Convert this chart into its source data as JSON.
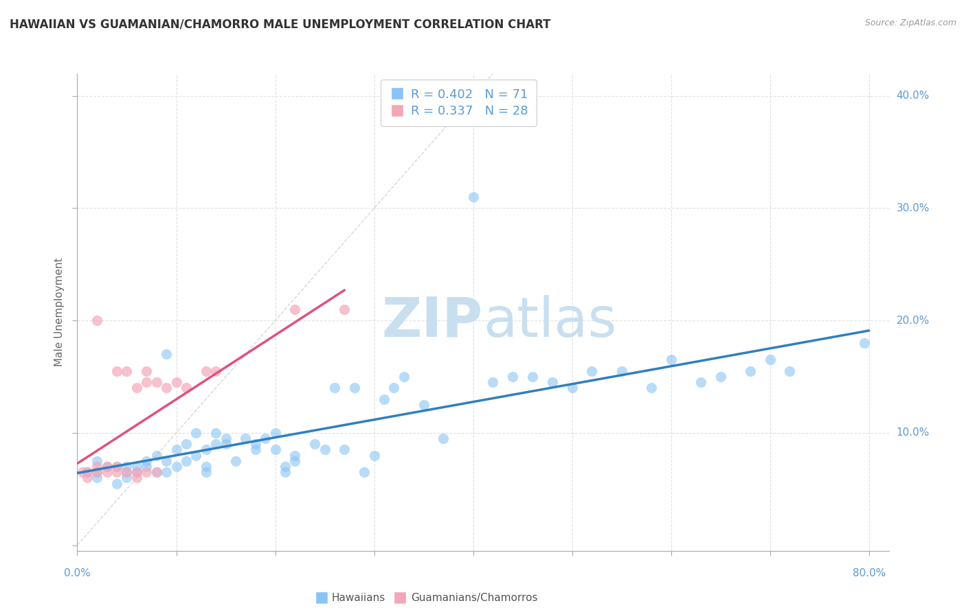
{
  "title": "HAWAIIAN VS GUAMANIAN/CHAMORRO MALE UNEMPLOYMENT CORRELATION CHART",
  "source": "Source: ZipAtlas.com",
  "ylabel": "Male Unemployment",
  "xlim": [
    0,
    0.82
  ],
  "ylim": [
    -0.005,
    0.42
  ],
  "hawaiian_color": "#89C4F4",
  "guamanian_color": "#F4A7B9",
  "hawaiian_line_color": "#2F7FBF",
  "guamanian_line_color": "#E05080",
  "diagonal_color": "#cccccc",
  "grid_color": "#e0e0e0",
  "tick_label_color": "#5B9BD5",
  "legend_R_hawaiian": "0.402",
  "legend_N_hawaiian": "71",
  "legend_R_guamanian": "0.337",
  "legend_N_guamanian": "28",
  "ytick_vals": [
    0.0,
    0.1,
    0.2,
    0.3,
    0.4
  ],
  "ytick_labels": [
    "",
    "10.0%",
    "20.0%",
    "30.0%",
    "40.0%"
  ],
  "xtick_show": [
    0.0,
    0.8
  ],
  "xtick_labels": [
    "0.0%",
    "80.0%"
  ],
  "hawaiian_x": [
    0.01,
    0.02,
    0.02,
    0.02,
    0.03,
    0.04,
    0.04,
    0.05,
    0.05,
    0.05,
    0.06,
    0.06,
    0.07,
    0.07,
    0.08,
    0.08,
    0.09,
    0.09,
    0.09,
    0.1,
    0.1,
    0.11,
    0.11,
    0.12,
    0.12,
    0.13,
    0.13,
    0.13,
    0.14,
    0.14,
    0.15,
    0.15,
    0.16,
    0.17,
    0.18,
    0.18,
    0.19,
    0.2,
    0.2,
    0.21,
    0.21,
    0.22,
    0.22,
    0.24,
    0.25,
    0.26,
    0.27,
    0.28,
    0.29,
    0.3,
    0.31,
    0.32,
    0.33,
    0.35,
    0.37,
    0.4,
    0.42,
    0.44,
    0.46,
    0.48,
    0.5,
    0.52,
    0.55,
    0.58,
    0.6,
    0.63,
    0.65,
    0.68,
    0.7,
    0.72,
    0.795
  ],
  "hawaiian_y": [
    0.065,
    0.06,
    0.065,
    0.075,
    0.07,
    0.055,
    0.07,
    0.06,
    0.065,
    0.07,
    0.065,
    0.07,
    0.07,
    0.075,
    0.08,
    0.065,
    0.065,
    0.075,
    0.17,
    0.07,
    0.085,
    0.075,
    0.09,
    0.08,
    0.1,
    0.065,
    0.07,
    0.085,
    0.09,
    0.1,
    0.09,
    0.095,
    0.075,
    0.095,
    0.085,
    0.09,
    0.095,
    0.085,
    0.1,
    0.065,
    0.07,
    0.075,
    0.08,
    0.09,
    0.085,
    0.14,
    0.085,
    0.14,
    0.065,
    0.08,
    0.13,
    0.14,
    0.15,
    0.125,
    0.095,
    0.31,
    0.145,
    0.15,
    0.15,
    0.145,
    0.14,
    0.155,
    0.155,
    0.14,
    0.165,
    0.145,
    0.15,
    0.155,
    0.165,
    0.155,
    0.18
  ],
  "guamanian_x": [
    0.005,
    0.01,
    0.01,
    0.02,
    0.02,
    0.02,
    0.03,
    0.03,
    0.04,
    0.04,
    0.04,
    0.05,
    0.05,
    0.06,
    0.06,
    0.06,
    0.07,
    0.07,
    0.07,
    0.08,
    0.08,
    0.09,
    0.1,
    0.11,
    0.13,
    0.14,
    0.22,
    0.27
  ],
  "guamanian_y": [
    0.065,
    0.06,
    0.065,
    0.065,
    0.07,
    0.2,
    0.065,
    0.07,
    0.065,
    0.07,
    0.155,
    0.065,
    0.155,
    0.06,
    0.065,
    0.14,
    0.065,
    0.145,
    0.155,
    0.065,
    0.145,
    0.14,
    0.145,
    0.14,
    0.155,
    0.155,
    0.21,
    0.21
  ]
}
